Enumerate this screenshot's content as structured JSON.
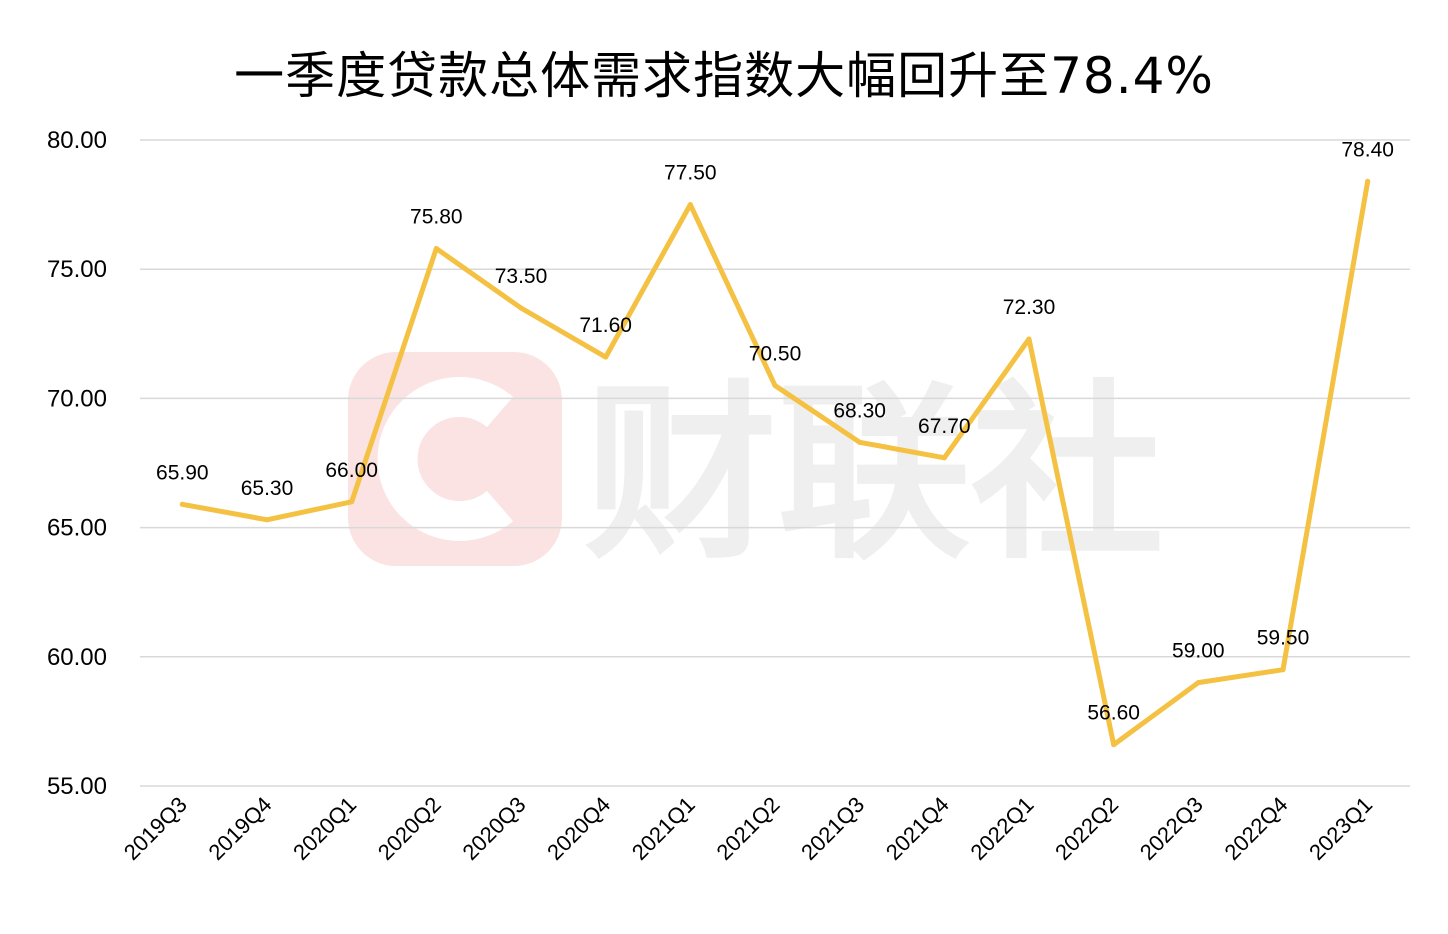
{
  "title": "一季度贷款总体需求指数大幅回升至78.4%",
  "watermark": {
    "text": "财联社",
    "logo_letter": "C"
  },
  "colors": {
    "line": "#F4C143",
    "grid": "#D9D9D9",
    "watermark_logo": "#FBE3E3",
    "watermark_text": "#EFEFEF"
  },
  "chart_data": {
    "type": "line",
    "title": "一季度贷款总体需求指数大幅回升至78.4%",
    "xlabel": "",
    "ylabel": "",
    "ylim": [
      55,
      80
    ],
    "yticks": [
      "55.00",
      "60.00",
      "65.00",
      "70.00",
      "75.00",
      "80.00"
    ],
    "ytick_values": [
      55,
      60,
      65,
      70,
      75,
      80
    ],
    "grid": true,
    "legend": "none",
    "categories": [
      "2019Q3",
      "2019Q4",
      "2020Q1",
      "2020Q2",
      "2020Q3",
      "2020Q4",
      "2021Q1",
      "2021Q2",
      "2021Q3",
      "2021Q4",
      "2022Q1",
      "2022Q2",
      "2022Q3",
      "2022Q4",
      "2023Q1"
    ],
    "series": [
      {
        "values": [
          65.9,
          65.3,
          66.0,
          75.8,
          73.5,
          71.6,
          77.5,
          70.5,
          68.3,
          67.7,
          72.3,
          56.6,
          59.0,
          59.5,
          78.4
        ],
        "labels": [
          "65.90",
          "65.30",
          "66.00",
          "75.80",
          "73.50",
          "71.60",
          "77.50",
          "70.50",
          "68.30",
          "67.70",
          "72.30",
          "56.60",
          "59.00",
          "59.50",
          "78.40"
        ]
      }
    ]
  }
}
